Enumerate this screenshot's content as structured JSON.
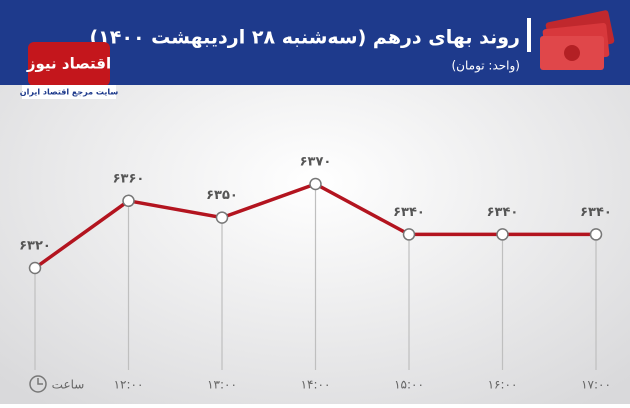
{
  "header": {
    "title": "روند بهای درهم (سه‌شنبه ۲۸ اردیبهشت ۱۴۰۰)",
    "subtitle": "(واحد: تومان)",
    "logo": "اقتصاد نیوز",
    "logo_tagline": "سایت مرجع اقتصاد ایران"
  },
  "chart_data": {
    "type": "line",
    "x_label": "ساعت",
    "categories": [
      null,
      "۱۲:۰۰",
      "۱۳:۰۰",
      "۱۴:۰۰",
      "۱۵:۰۰",
      "۱۶:۰۰",
      "۱۷:۰۰"
    ],
    "values": [
      6320,
      6360,
      6350,
      6370,
      6340,
      6340,
      6340
    ],
    "value_labels": [
      "۶۳۲۰",
      "۶۳۶۰",
      "۶۳۵۰",
      "۶۳۷۰",
      "۶۳۴۰",
      "۶۳۴۰",
      "۶۳۴۰"
    ],
    "color": "#b3141f"
  }
}
